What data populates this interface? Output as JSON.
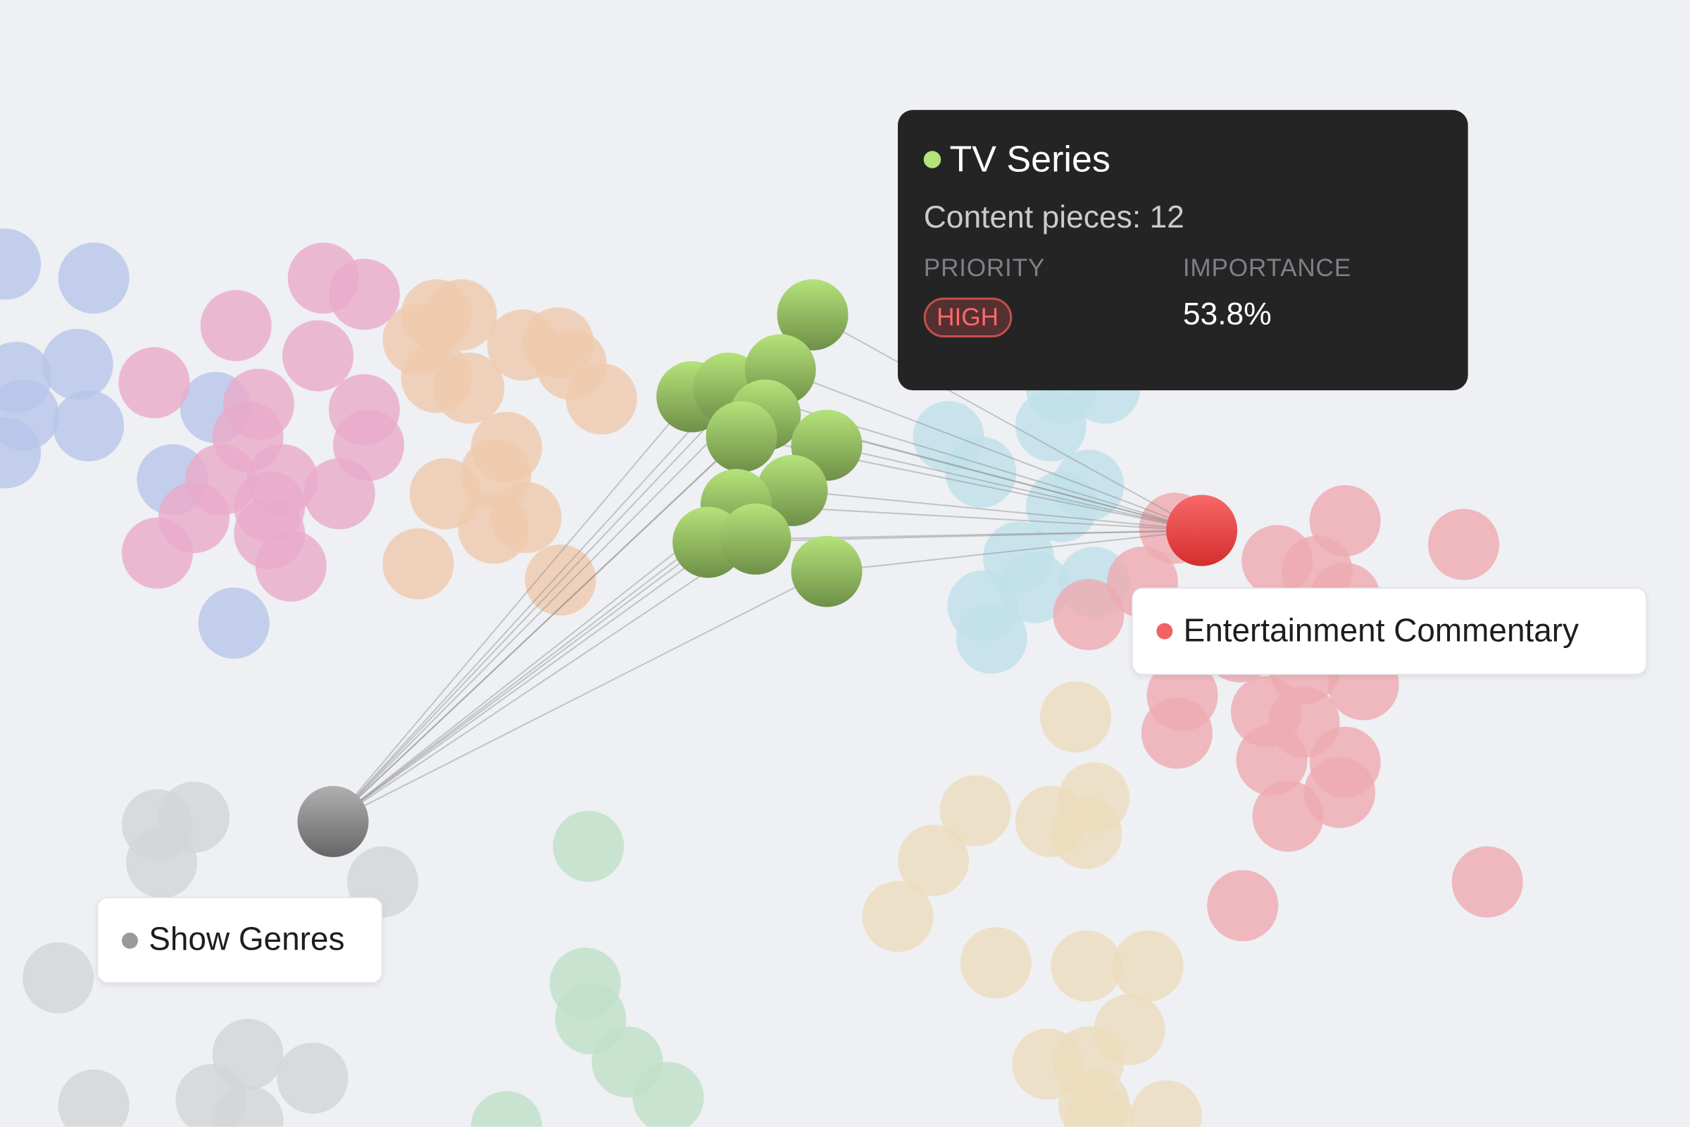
{
  "tooltip": {
    "title": "TV Series",
    "title_color": "#b5e37a",
    "count_text": "Content pieces: 12",
    "priority_label": "PRIORITY",
    "priority_value": "HIGH",
    "importance_label": "IMPORTANCE",
    "importance_value": "53.8%"
  },
  "labels": {
    "target": {
      "text": "Entertainment Commentary",
      "color": "#f26262"
    },
    "source": {
      "text": "Show Genres",
      "color": "#9a9a9a"
    }
  },
  "groups": {
    "blue": "#b7c6ea",
    "pink": "#eaaac9",
    "peach": "#efc9ad",
    "green": "#93c05f",
    "lightblue": "#bfe0ea",
    "red": "#eeaab0",
    "beige": "#ecdcbd",
    "mint": "#bfe0c8",
    "gray": "#d3d4d6"
  },
  "highlight": {
    "source": "Show Genres",
    "hub": "TV Series",
    "target": "Entertainment Commentary"
  }
}
